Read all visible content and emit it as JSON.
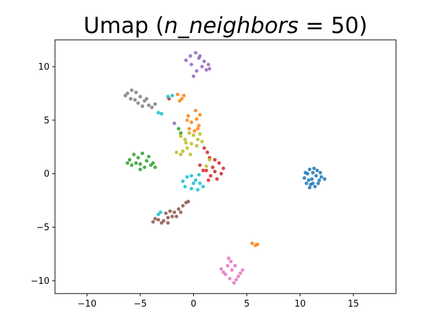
{
  "chart_data": {
    "type": "scatter",
    "title": "Umap (n_neighbors = 50)",
    "title_parts": {
      "prefix": "Umap (",
      "math": "n_neighbors",
      "suffix": " = 50)"
    },
    "xlabel": "",
    "ylabel": "",
    "xlim": [
      -13,
      19
    ],
    "ylim": [
      -11.2,
      12.5
    ],
    "xticks": [
      -10,
      -5,
      0,
      5,
      10,
      15
    ],
    "xtick_labels": [
      "−10",
      "−5",
      "0",
      "5",
      "10",
      "15"
    ],
    "yticks": [
      -10,
      -5,
      0,
      5,
      10
    ],
    "ytick_labels": [
      "−10",
      "−5",
      "0",
      "5",
      "10"
    ],
    "grid": false,
    "legend": false,
    "series": [
      {
        "color": "#1f77b4",
        "points": [
          [
            10.4,
            -0.4
          ],
          [
            10.7,
            0.0
          ],
          [
            10.9,
            0.4
          ],
          [
            11.2,
            0.1
          ],
          [
            11.5,
            -0.2
          ],
          [
            11.8,
            -0.6
          ],
          [
            11.0,
            -1.0
          ],
          [
            10.6,
            -0.9
          ],
          [
            11.4,
            -1.2
          ],
          [
            12.0,
            -0.3
          ],
          [
            12.3,
            -0.5
          ],
          [
            11.6,
            0.3
          ],
          [
            11.1,
            -0.5
          ],
          [
            10.8,
            -0.6
          ],
          [
            11.3,
            0.5
          ],
          [
            10.5,
            0.1
          ],
          [
            11.9,
            0.1
          ],
          [
            11.2,
            -0.9
          ],
          [
            10.9,
            -1.3
          ],
          [
            11.7,
            -0.9
          ]
        ]
      },
      {
        "color": "#ff7f0e",
        "points": [
          [
            -1.5,
            7.4
          ],
          [
            -1.1,
            7.0
          ],
          [
            -0.9,
            7.3
          ],
          [
            -1.3,
            6.8
          ],
          [
            -0.5,
            5.4
          ],
          [
            -0.2,
            4.8
          ],
          [
            0.3,
            5.1
          ],
          [
            0.5,
            4.5
          ],
          [
            -0.4,
            4.2
          ],
          [
            0.1,
            4.0
          ],
          [
            0.6,
            5.5
          ],
          [
            0.2,
            5.9
          ],
          [
            -0.6,
            5.0
          ],
          [
            0.4,
            4.2
          ],
          [
            5.5,
            -6.5
          ],
          [
            5.8,
            -6.7
          ],
          [
            6.0,
            -6.6
          ]
        ]
      },
      {
        "color": "#2ca02c",
        "points": [
          [
            -6.0,
            1.3
          ],
          [
            -5.6,
            1.8
          ],
          [
            -5.2,
            1.5
          ],
          [
            -4.8,
            1.9
          ],
          [
            -4.4,
            1.2
          ],
          [
            -4.0,
            0.8
          ],
          [
            -3.6,
            0.6
          ],
          [
            -4.6,
            0.6
          ],
          [
            -5.0,
            0.9
          ],
          [
            -5.8,
            0.8
          ],
          [
            -6.2,
            1.0
          ],
          [
            -5.4,
            1.0
          ],
          [
            -4.2,
            1.6
          ],
          [
            -3.8,
            1.0
          ],
          [
            -5.0,
            0.4
          ],
          [
            -1.4,
            4.2
          ],
          [
            -1.2,
            3.8
          ]
        ]
      },
      {
        "color": "#d62728",
        "points": [
          [
            1.5,
            1.5
          ],
          [
            2.0,
            1.3
          ],
          [
            2.4,
            1.0
          ],
          [
            1.8,
            0.6
          ],
          [
            1.2,
            0.3
          ],
          [
            1.6,
            -0.2
          ],
          [
            2.2,
            -0.5
          ],
          [
            2.6,
            0.0
          ],
          [
            2.8,
            0.5
          ],
          [
            1.4,
            -0.6
          ],
          [
            2.0,
            0.2
          ],
          [
            1.0,
            2.4
          ],
          [
            1.3,
            2.0
          ],
          [
            0.6,
            0.8
          ],
          [
            0.9,
            0.3
          ],
          [
            -2.3,
            7.0
          ]
        ]
      },
      {
        "color": "#9467bd",
        "points": [
          [
            -0.7,
            10.6
          ],
          [
            -0.3,
            11.0
          ],
          [
            0.2,
            11.3
          ],
          [
            0.5,
            10.8
          ],
          [
            1.0,
            10.5
          ],
          [
            1.4,
            10.2
          ],
          [
            1.5,
            9.8
          ],
          [
            0.8,
            10.0
          ],
          [
            0.3,
            9.6
          ],
          [
            0.0,
            9.1
          ],
          [
            -0.2,
            10.2
          ],
          [
            0.6,
            11.0
          ],
          [
            1.2,
            9.7
          ],
          [
            -1.8,
            4.7
          ]
        ]
      },
      {
        "color": "#8c564b",
        "points": [
          [
            -3.8,
            -4.5
          ],
          [
            -3.3,
            -4.3
          ],
          [
            -2.8,
            -4.4
          ],
          [
            -2.4,
            -4.1
          ],
          [
            -2.0,
            -4.0
          ],
          [
            -2.6,
            -3.7
          ],
          [
            -2.2,
            -3.5
          ],
          [
            -1.8,
            -3.6
          ],
          [
            -1.4,
            -3.3
          ],
          [
            -1.0,
            -3.0
          ],
          [
            -0.7,
            -2.7
          ],
          [
            -3.6,
            -4.2
          ],
          [
            -3.0,
            -4.6
          ],
          [
            -1.6,
            -4.0
          ],
          [
            -2.4,
            -4.6
          ],
          [
            -1.2,
            -3.6
          ],
          [
            -0.5,
            -2.6
          ]
        ]
      },
      {
        "color": "#e377c2",
        "points": [
          [
            2.6,
            -8.9
          ],
          [
            3.0,
            -9.4
          ],
          [
            3.4,
            -9.8
          ],
          [
            3.8,
            -10.2
          ],
          [
            4.2,
            -9.6
          ],
          [
            4.6,
            -9.0
          ],
          [
            3.9,
            -8.6
          ],
          [
            3.5,
            -8.2
          ],
          [
            3.2,
            -8.6
          ],
          [
            2.8,
            -9.2
          ],
          [
            4.4,
            -9.3
          ],
          [
            3.6,
            -9.0
          ],
          [
            3.3,
            -7.9
          ],
          [
            4.0,
            -9.9
          ]
        ]
      },
      {
        "color": "#7f7f7f",
        "points": [
          [
            -6.2,
            7.5
          ],
          [
            -5.8,
            7.8
          ],
          [
            -5.4,
            7.6
          ],
          [
            -5.0,
            7.2
          ],
          [
            -4.6,
            6.8
          ],
          [
            -4.2,
            6.4
          ],
          [
            -3.9,
            6.2
          ],
          [
            -5.5,
            6.9
          ],
          [
            -5.9,
            7.0
          ],
          [
            -4.8,
            6.3
          ],
          [
            -4.4,
            7.0
          ],
          [
            -5.2,
            6.6
          ],
          [
            -3.6,
            6.5
          ],
          [
            -6.4,
            7.3
          ]
        ]
      },
      {
        "color": "#bcbd22",
        "points": [
          [
            -1.2,
            3.5
          ],
          [
            -0.8,
            3.2
          ],
          [
            -0.4,
            3.8
          ],
          [
            0.0,
            3.6
          ],
          [
            0.4,
            3.2
          ],
          [
            0.8,
            3.0
          ],
          [
            -0.2,
            2.8
          ],
          [
            -0.6,
            2.4
          ],
          [
            -1.0,
            2.1
          ],
          [
            -1.6,
            2.0
          ],
          [
            -1.2,
            1.8
          ],
          [
            0.3,
            2.6
          ],
          [
            -0.3,
            1.8
          ],
          [
            -0.7,
            2.9
          ],
          [
            0.6,
            3.7
          ],
          [
            1.5,
            1.3
          ],
          [
            1.2,
            0.7
          ]
        ]
      },
      {
        "color": "#17becf",
        "points": [
          [
            -2.4,
            7.2
          ],
          [
            -2.0,
            7.3
          ],
          [
            -3.3,
            5.7
          ],
          [
            -3.0,
            5.6
          ],
          [
            -1.0,
            -0.7
          ],
          [
            -0.6,
            -0.3
          ],
          [
            -0.2,
            -0.2
          ],
          [
            0.2,
            -0.6
          ],
          [
            0.6,
            -0.9
          ],
          [
            0.9,
            -1.2
          ],
          [
            0.4,
            -1.5
          ],
          [
            -0.2,
            -1.4
          ],
          [
            -0.8,
            -1.2
          ],
          [
            0.0,
            -0.9
          ],
          [
            0.5,
            -0.1
          ],
          [
            -3.3,
            -3.8
          ],
          [
            -3.1,
            -3.6
          ]
        ]
      }
    ]
  }
}
